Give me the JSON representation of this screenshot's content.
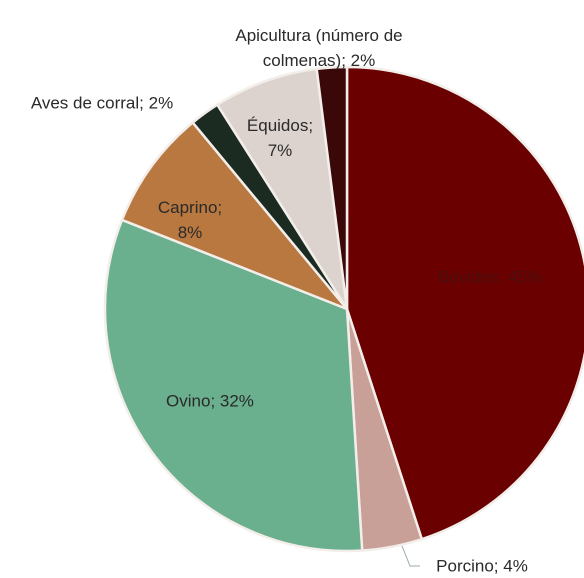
{
  "chart_data": {
    "type": "pie",
    "values": [
      45,
      4,
      32,
      8,
      2,
      7,
      2
    ],
    "value_labels": [
      "Bóvidos; 45%",
      "Porcino; 4%",
      "Ovino; 32%",
      "Caprino; 8%",
      "Aves de corral; 2%",
      "Équidos; 7%",
      "Apicultura (número de colmenas); 2%"
    ],
    "colors": [
      "#6b0000",
      "#c9a097",
      "#6aaf8e",
      "#b87840",
      "#1b2b22",
      "#dcd3ce",
      "#3a0808"
    ]
  }
}
